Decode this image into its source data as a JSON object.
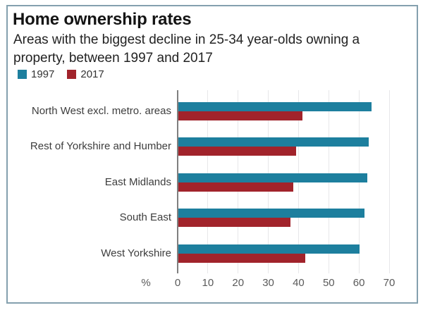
{
  "header": {
    "title": "Home ownership rates",
    "subtitle": "Areas with the biggest decline in 25-34 year-olds owning a property, between 1997 and 2017"
  },
  "legend": [
    {
      "label": "1997",
      "color": "#1d7f9e"
    },
    {
      "label": "2017",
      "color": "#a1232b"
    }
  ],
  "colors": {
    "series_1997": "#1d7f9e",
    "series_2017": "#a1232b",
    "frame_border": "#84a0ae",
    "axis": "#7f7f7f",
    "gridline": "#e7e7e9"
  },
  "chart_data": {
    "type": "bar",
    "orientation": "horizontal",
    "title": "Home ownership rates",
    "subtitle": "Areas with the biggest decline in 25-34 year-olds owning a property, between 1997 and 2017",
    "categories": [
      "North West excl. metro. areas",
      "Rest of Yorkshire and Humber",
      "East Midlands",
      "South East",
      "West Yorkshire"
    ],
    "series": [
      {
        "name": "1997",
        "color": "#1d7f9e",
        "values": [
          64,
          63,
          62.5,
          61.5,
          60
        ]
      },
      {
        "name": "2017",
        "color": "#a1232b",
        "values": [
          41,
          39,
          38,
          37,
          42
        ]
      }
    ],
    "xlabel": "%",
    "xlim": [
      0,
      70
    ],
    "xticks": [
      0,
      10,
      20,
      30,
      40,
      50,
      60,
      70
    ],
    "grid": true,
    "legend_position": "top-left"
  }
}
